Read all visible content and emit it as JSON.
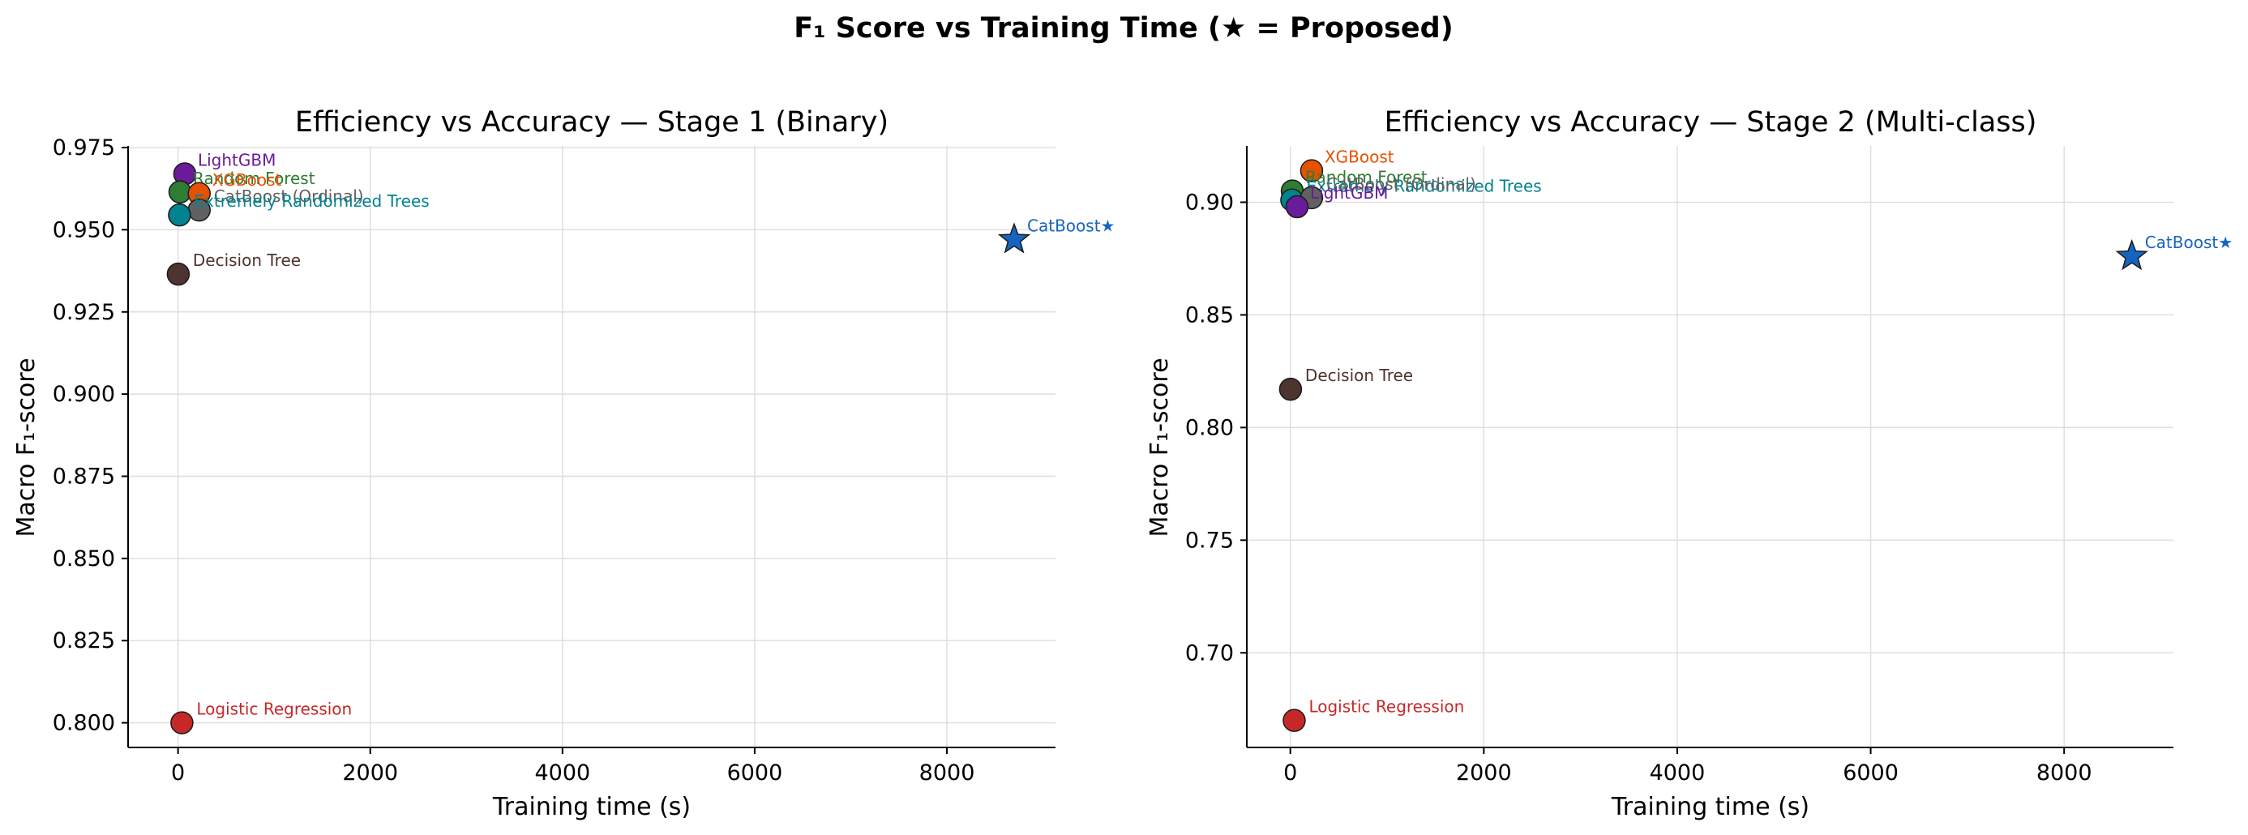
{
  "figure_title": "F₁ Score vs Training Time (★ = Proposed)",
  "chart_data": [
    {
      "type": "scatter",
      "title": "Efficiency vs Accuracy — Stage 1 (Binary)",
      "xlabel": "Training time (s)",
      "ylabel": "Macro F₁-score",
      "xlim": [
        -520,
        9130
      ],
      "ylim": [
        0.7925,
        0.9755
      ],
      "xticks": [
        0,
        2000,
        4000,
        6000,
        8000
      ],
      "xtick_labels": [
        "0",
        "2000",
        "4000",
        "6000",
        "8000"
      ],
      "yticks": [
        0.8,
        0.825,
        0.85,
        0.875,
        0.9,
        0.925,
        0.95,
        0.975
      ],
      "ytick_labels": [
        "0.800",
        "0.825",
        "0.850",
        "0.875",
        "0.900",
        "0.925",
        "0.950",
        "0.975"
      ],
      "grid": true,
      "points": [
        {
          "label": "LightGBM",
          "x": 70,
          "y": 0.967,
          "color": "#6a1b9a",
          "marker": "circle"
        },
        {
          "label": "Random Forest",
          "x": 20,
          "y": 0.9615,
          "color": "#2e7d32",
          "marker": "circle"
        },
        {
          "label": "XGBoost",
          "x": 220,
          "y": 0.961,
          "color": "#e65100",
          "marker": "circle"
        },
        {
          "label": "CatBoost (Ordinal)",
          "x": 220,
          "y": 0.956,
          "color": "#616161",
          "marker": "circle"
        },
        {
          "label": "Extremely Randomized Trees",
          "x": 15,
          "y": 0.9545,
          "color": "#00838f",
          "marker": "circle"
        },
        {
          "label": "Decision Tree",
          "x": 2,
          "y": 0.9365,
          "color": "#4e342e",
          "marker": "circle"
        },
        {
          "label": "Logistic Regression",
          "x": 40,
          "y": 0.8,
          "color": "#c62828",
          "marker": "circle"
        },
        {
          "label": "CatBoost★",
          "x": 8700,
          "y": 0.947,
          "color": "#1565c0",
          "marker": "star"
        }
      ]
    },
    {
      "type": "scatter",
      "title": "Efficiency vs Accuracy — Stage 2 (Multi-class)",
      "xlabel": "Training time (s)",
      "ylabel": "Macro F₁-score",
      "xlim": [
        -450,
        9130
      ],
      "ylim": [
        0.658,
        0.925
      ],
      "xticks": [
        0,
        2000,
        4000,
        6000,
        8000
      ],
      "xtick_labels": [
        "0",
        "2000",
        "4000",
        "6000",
        "8000"
      ],
      "yticks": [
        0.7,
        0.75,
        0.8,
        0.85,
        0.9
      ],
      "ytick_labels": [
        "0.70",
        "0.75",
        "0.80",
        "0.85",
        "0.90"
      ],
      "grid": true,
      "points": [
        {
          "label": "XGBoost",
          "x": 220,
          "y": 0.914,
          "color": "#e65100",
          "marker": "circle"
        },
        {
          "label": "Random Forest",
          "x": 20,
          "y": 0.905,
          "color": "#2e7d32",
          "marker": "circle"
        },
        {
          "label": "Extremely Randomized Trees",
          "x": 15,
          "y": 0.901,
          "color": "#00838f",
          "marker": "circle"
        },
        {
          "label": "CatBoost (Ordinal)",
          "x": 220,
          "y": 0.902,
          "color": "#616161",
          "marker": "circle"
        },
        {
          "label": "LightGBM",
          "x": 70,
          "y": 0.898,
          "color": "#6a1b9a",
          "marker": "circle"
        },
        {
          "label": "Decision Tree",
          "x": 2,
          "y": 0.817,
          "color": "#4e342e",
          "marker": "circle"
        },
        {
          "label": "Logistic Regression",
          "x": 40,
          "y": 0.67,
          "color": "#c62828",
          "marker": "circle"
        },
        {
          "label": "CatBoost★",
          "x": 8700,
          "y": 0.876,
          "color": "#1565c0",
          "marker": "star"
        }
      ]
    }
  ]
}
